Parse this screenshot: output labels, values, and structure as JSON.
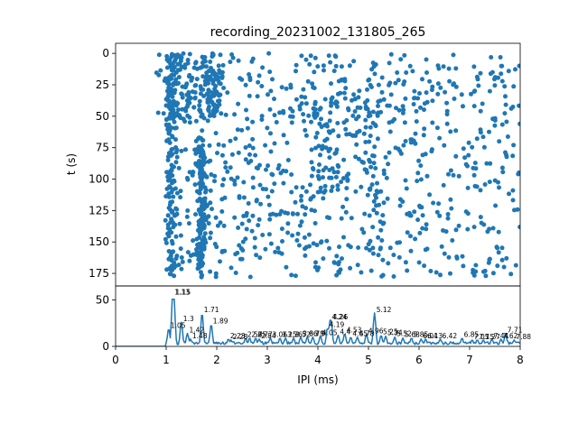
{
  "figure": {
    "title": "recording_20231002_131805_265"
  },
  "chart_data": [
    {
      "type": "scatter",
      "panel": "raster",
      "title": "recording_20231002_131805_265",
      "ylabel": "t (s)",
      "xlim": [
        0,
        8
      ],
      "ylim": [
        185,
        -8
      ],
      "yticks": [
        0,
        25,
        50,
        75,
        100,
        125,
        150,
        175
      ],
      "color": "#1f77b4",
      "random_seed": 265,
      "points_shown": "~1500 dots: dense vertical columns near IPI 1.05–1.15 ms and 1.7 ms, sparser scatter from 1.0 to 8.0 ms across t = 0–178 s",
      "cluster_columns": [
        {
          "x_center": 1.1,
          "x_spread": 0.06,
          "t_range": [
            0,
            178
          ],
          "density": "high"
        },
        {
          "x_center": 1.7,
          "x_spread": 0.05,
          "t_range": [
            65,
            178
          ],
          "density": "high"
        },
        {
          "x_center": 1.3,
          "x_spread": 0.25,
          "t_range": [
            0,
            55
          ],
          "density": "medium"
        },
        {
          "x_center": 1.9,
          "x_spread": 0.1,
          "t_range": [
            0,
            50
          ],
          "density": "medium"
        },
        {
          "x_center": 4.3,
          "x_spread": 0.4,
          "t_range": [
            20,
            110
          ],
          "density": "medium"
        },
        {
          "x_center": 5.1,
          "x_spread": 0.1,
          "t_range": [
            0,
            178
          ],
          "density": "low"
        }
      ],
      "background_x_range": [
        1.0,
        8.0
      ],
      "background_t_range": [
        0,
        178
      ]
    },
    {
      "type": "line",
      "panel": "histogram",
      "xlabel": "IPI (ms)",
      "xlim": [
        0,
        8
      ],
      "ylim": [
        0,
        65
      ],
      "xticks": [
        0,
        1,
        2,
        3,
        4,
        5,
        6,
        7,
        8
      ],
      "yticks": [
        0,
        50
      ],
      "color": "#1f77b4",
      "bin_width_ms": 0.02,
      "peaks": [
        {
          "x": 1.13,
          "y": 55,
          "label": "1.13"
        },
        {
          "x": 1.15,
          "y": 55,
          "label": "1.15"
        },
        {
          "x": 1.05,
          "y": 19,
          "label": "1.05"
        },
        {
          "x": 1.3,
          "y": 26,
          "label": "1.3"
        },
        {
          "x": 1.42,
          "y": 14,
          "label": "1.42"
        },
        {
          "x": 1.48,
          "y": 8,
          "label": "1.48"
        },
        {
          "x": 1.71,
          "y": 36,
          "label": "1.71"
        },
        {
          "x": 1.89,
          "y": 24,
          "label": "1.89"
        },
        {
          "x": 2.23,
          "y": 8,
          "label": "2.23"
        },
        {
          "x": 2.28,
          "y": 7,
          "label": "2.28"
        },
        {
          "x": 2.57,
          "y": 9,
          "label": "2.57"
        },
        {
          "x": 2.65,
          "y": 9,
          "label": "2.65"
        },
        {
          "x": 2.77,
          "y": 9,
          "label": "2.77"
        },
        {
          "x": 2.84,
          "y": 8,
          "label": "2.84"
        },
        {
          "x": 3.06,
          "y": 9,
          "label": "3.06"
        },
        {
          "x": 3.25,
          "y": 9,
          "label": "3.25"
        },
        {
          "x": 3.36,
          "y": 9,
          "label": "3.36"
        },
        {
          "x": 3.52,
          "y": 9,
          "label": "3.52"
        },
        {
          "x": 3.66,
          "y": 10,
          "label": "3.66"
        },
        {
          "x": 3.79,
          "y": 10,
          "label": "3.79"
        },
        {
          "x": 3.9,
          "y": 10,
          "label": "3.9"
        },
        {
          "x": 4.05,
          "y": 11,
          "label": "4.05"
        },
        {
          "x": 4.19,
          "y": 20,
          "label": "4.19"
        },
        {
          "x": 4.24,
          "y": 28,
          "label": "4.24"
        },
        {
          "x": 4.26,
          "y": 28,
          "label": "4.26"
        },
        {
          "x": 4.4,
          "y": 12,
          "label": "4.4"
        },
        {
          "x": 4.53,
          "y": 14,
          "label": "4.53"
        },
        {
          "x": 4.65,
          "y": 10,
          "label": "4.65"
        },
        {
          "x": 4.78,
          "y": 10,
          "label": "4.78"
        },
        {
          "x": 4.96,
          "y": 13,
          "label": "4.96"
        },
        {
          "x": 5.12,
          "y": 36,
          "label": "5.12"
        },
        {
          "x": 5.25,
          "y": 12,
          "label": "5.25"
        },
        {
          "x": 5.34,
          "y": 11,
          "label": "5.34"
        },
        {
          "x": 5.52,
          "y": 10,
          "label": "5.52"
        },
        {
          "x": 5.68,
          "y": 9,
          "label": "5.68"
        },
        {
          "x": 5.85,
          "y": 9,
          "label": "5.85"
        },
        {
          "x": 6.04,
          "y": 8,
          "label": "6.04"
        },
        {
          "x": 6.13,
          "y": 8,
          "label": "6.13"
        },
        {
          "x": 6.42,
          "y": 8,
          "label": "6.42"
        },
        {
          "x": 6.85,
          "y": 9,
          "label": "6.85"
        },
        {
          "x": 7.05,
          "y": 7,
          "label": "7.05"
        },
        {
          "x": 7.15,
          "y": 7,
          "label": "7.15"
        },
        {
          "x": 7.27,
          "y": 7,
          "label": "7.27"
        },
        {
          "x": 7.44,
          "y": 8,
          "label": "7.44"
        },
        {
          "x": 7.62,
          "y": 8,
          "label": "7.62"
        },
        {
          "x": 7.71,
          "y": 14,
          "label": "7.71"
        },
        {
          "x": 7.88,
          "y": 7,
          "label": "7.88"
        }
      ]
    }
  ]
}
